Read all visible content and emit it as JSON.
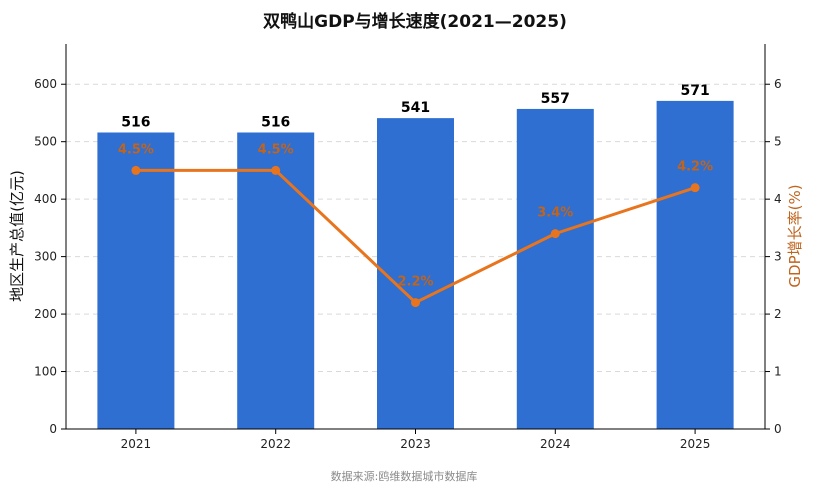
{
  "chart_data": {
    "type": "bar",
    "title": "双鸭山GDP与增长速度(2021—2025)",
    "categories": [
      "2021",
      "2022",
      "2023",
      "2024",
      "2025"
    ],
    "series": [
      {
        "name": "地区生产总值(亿元)",
        "type": "bar",
        "axis": "left",
        "values": [
          516,
          516,
          541,
          557,
          571
        ],
        "labels": [
          "516",
          "516",
          "541",
          "557",
          "571"
        ],
        "color": "#2e6fd1"
      },
      {
        "name": "GDP增长率(%)",
        "type": "line",
        "axis": "right",
        "values": [
          4.5,
          4.5,
          2.2,
          3.4,
          4.2
        ],
        "labels": [
          "4.5%",
          "4.5%",
          "2.2%",
          "3.4%",
          "4.2%"
        ],
        "color": "#e8741e"
      }
    ],
    "ylabel_left": "地区生产总值(亿元)",
    "ylabel_right": "GDP增长率(%)",
    "ylim_left": [
      0,
      670
    ],
    "ylim_right": [
      0,
      6.7
    ],
    "yticks_left": [
      0,
      100,
      200,
      300,
      400,
      500,
      600
    ],
    "yticks_right": [
      0,
      1,
      2,
      3,
      4,
      5,
      6
    ],
    "grid": true,
    "source": "数据来源:鸥维数据城市数据库"
  }
}
